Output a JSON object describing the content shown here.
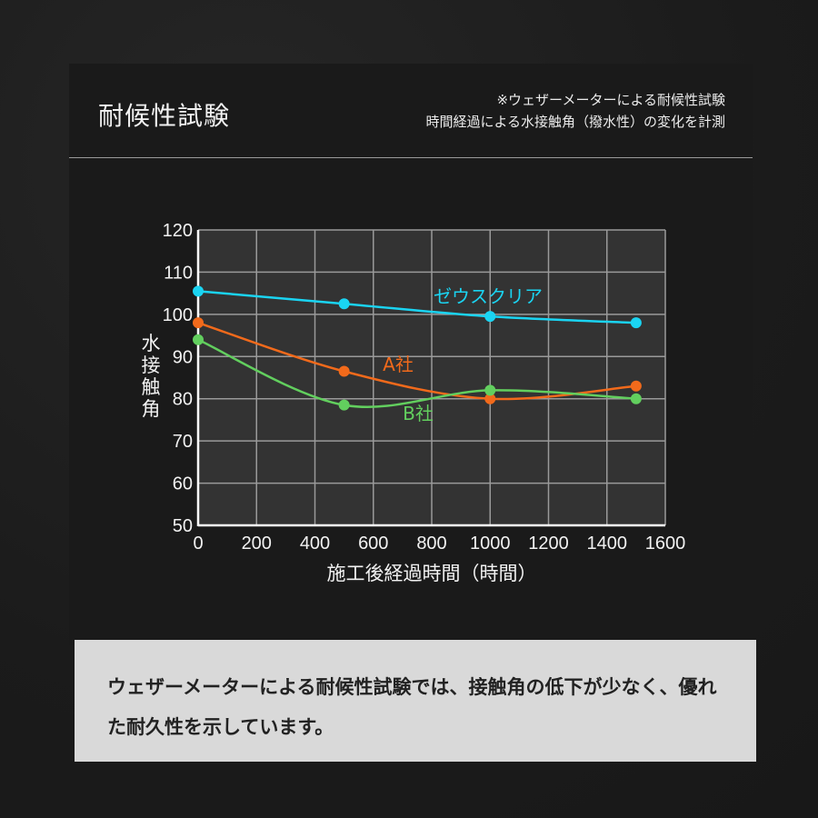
{
  "header": {
    "title": "耐候性試験",
    "note_line1": "※ウェザーメーターによる耐候性試験",
    "note_line2": "時間経過による水接触角（撥水性）の変化を計測"
  },
  "summary": {
    "text": "ウェザーメーターによる耐候性試験では、接触角の低下が少なく、優れた耐久性を示しています。"
  },
  "colors": {
    "zeus": "#1ad4f2",
    "a_company": "#f26a1b",
    "b_company": "#62cf5e",
    "plot_bg": "#333333",
    "grid": "#9a9a9a"
  },
  "chart_data": {
    "type": "line",
    "title": "",
    "xlabel": "施工後経過時間（時間）",
    "ylabel": "水接触角",
    "x": [
      0,
      500,
      1000,
      1500
    ],
    "xlim": [
      0,
      1600
    ],
    "ylim": [
      50,
      120
    ],
    "xticks": [
      0,
      200,
      400,
      600,
      800,
      1000,
      1200,
      1400,
      1600
    ],
    "yticks": [
      50,
      60,
      70,
      80,
      90,
      100,
      110,
      120
    ],
    "grid": true,
    "smooth": true,
    "series": [
      {
        "name": "ゼウスクリア",
        "values": [
          105.5,
          102.5,
          99.5,
          98
        ]
      },
      {
        "name": "A社",
        "values": [
          98,
          86.5,
          80,
          83
        ]
      },
      {
        "name": "B社",
        "values": [
          94,
          78.5,
          82,
          80
        ]
      }
    ],
    "legend": "inline labels near lines"
  }
}
